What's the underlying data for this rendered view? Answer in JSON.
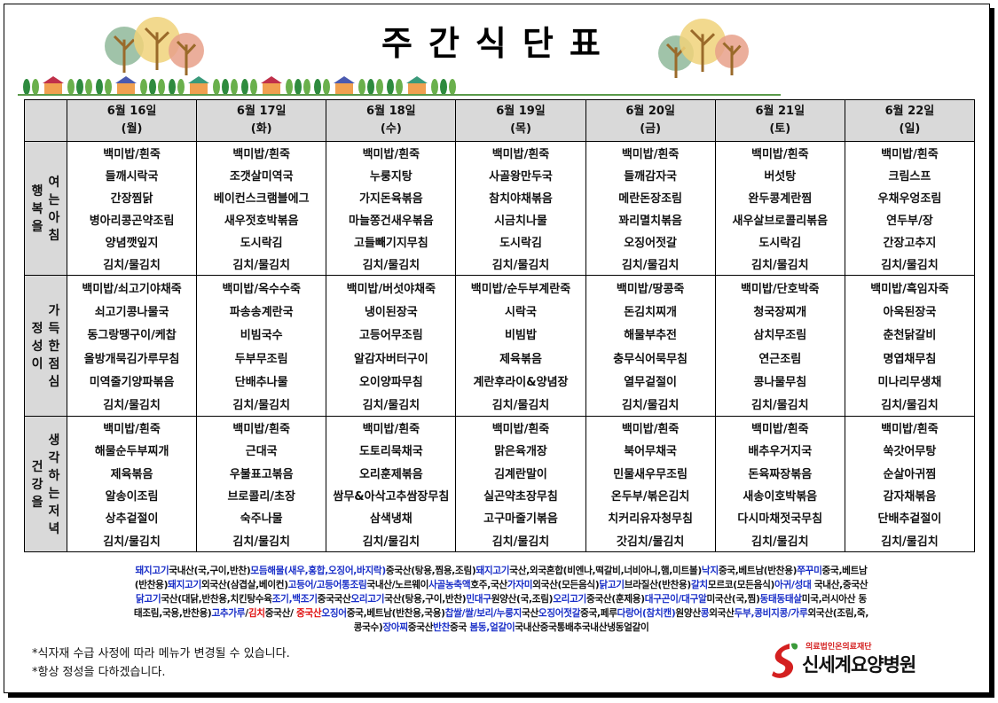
{
  "title": "주간식단표",
  "days": [
    {
      "date": "6월 16일",
      "weekday": "(월)"
    },
    {
      "date": "6월 17일",
      "weekday": "(화)"
    },
    {
      "date": "6월 18일",
      "weekday": "(수)"
    },
    {
      "date": "6월 19일",
      "weekday": "(목)"
    },
    {
      "date": "6월 20일",
      "weekday": "(금)"
    },
    {
      "date": "6월 21일",
      "weekday": "(토)"
    },
    {
      "date": "6월 22일",
      "weekday": "(일)"
    }
  ],
  "meals": [
    {
      "label_left": [
        "행",
        "복",
        "을"
      ],
      "label_right": [
        "여",
        "는",
        "아",
        "침"
      ],
      "menus": [
        [
          "백미밥/흰죽",
          "들깨시락국",
          "간장찜닭",
          "병아리콩곤약조림",
          "양념깻잎지",
          "김치/물김치"
        ],
        [
          "백미밥/흰죽",
          "조갯살미역국",
          "베이컨스크램블에그",
          "새우젓호박볶음",
          "도시락김",
          "김치/물김치"
        ],
        [
          "백미밥/흰죽",
          "누룽지탕",
          "가지돈육볶음",
          "마늘쫑건새우볶음",
          "고들빼기지무침",
          "김치/물김치"
        ],
        [
          "백미밥/흰죽",
          "사골왕만두국",
          "참치야채볶음",
          "시금치나물",
          "도시락김",
          "김치/물김치"
        ],
        [
          "백미밥/흰죽",
          "들깨감자국",
          "메란돈장조림",
          "꽈리멸치볶음",
          "오징어젓갈",
          "김치/물김치"
        ],
        [
          "백미밥/흰죽",
          "버섯탕",
          "완두콩계란찜",
          "새우살브로콜리볶음",
          "도시락김",
          "김치/물김치"
        ],
        [
          "백미밥/흰죽",
          "크림스프",
          "우채우엉조림",
          "연두부/장",
          "간장고추지",
          "김치/물김치"
        ]
      ]
    },
    {
      "label_left": [
        "정",
        "성",
        "이"
      ],
      "label_right": [
        "가",
        "득",
        "한",
        "점",
        "심"
      ],
      "menus": [
        [
          "백미밥/쇠고기야채죽",
          "쇠고기콩나물국",
          "동그랑땡구이/케찹",
          "올방개묵김가루무침",
          "미역줄기양파볶음",
          "김치/물김치"
        ],
        [
          "백미밥/옥수수죽",
          "파송송계란국",
          "비빔국수",
          "두부무조림",
          "단배추나물",
          "김치/물김치"
        ],
        [
          "백미밥/버섯야채죽",
          "냉이된장국",
          "고등어무조림",
          "알감자버터구이",
          "오이양파무침",
          "김치/물김치"
        ],
        [
          "백미밥/순두부계란죽",
          "시락국",
          "비빔밥",
          "제육볶음",
          "계란후라이&양념장",
          "김치/물김치"
        ],
        [
          "백미밥/땅콩죽",
          "돈김치찌개",
          "해물부추전",
          "충무식어묵무침",
          "열무겉절이",
          "김치/물김치"
        ],
        [
          "백미밥/단호박죽",
          "청국장찌개",
          "삼치무조림",
          "연근조림",
          "콩나물무침",
          "김치/물김치"
        ],
        [
          "백미밥/흑임자죽",
          "아욱된장국",
          "춘천닭갈비",
          "명엽채무침",
          "미나리무생채",
          "김치/물김치"
        ]
      ]
    },
    {
      "label_left": [
        "건",
        "강",
        "을"
      ],
      "label_right": [
        "생",
        "각",
        "하",
        "는",
        "저",
        "녁"
      ],
      "menus": [
        [
          "백미밥/흰죽",
          "해물순두부찌개",
          "제육볶음",
          "알송이조림",
          "상추겉절이",
          "김치/물김치"
        ],
        [
          "백미밥/흰죽",
          "근대국",
          "우불표고볶음",
          "브로콜리/초장",
          "숙주나물",
          "김치/물김치"
        ],
        [
          "백미밥/흰죽",
          "도토리묵채국",
          "오리훈제볶음",
          "쌈무&아삭고추쌈장무침",
          "삼색냉채",
          "김치/물김치"
        ],
        [
          "백미밥/흰죽",
          "맑은육개장",
          "김계란말이",
          "실곤약초장무침",
          "고구마줄기볶음",
          "김치/물김치"
        ],
        [
          "백미밥/흰죽",
          "북어무채국",
          "민물새우무조림",
          "온두부/볶은김치",
          "치커리유자청무침",
          "갓김치/물김치"
        ],
        [
          "백미밥/흰죽",
          "배추우거지국",
          "돈육짜장볶음",
          "새송이호박볶음",
          "다시마채젓국무침",
          "김치/물김치"
        ],
        [
          "백미밥/흰죽",
          "쑥갓어무탕",
          "순살아귀찜",
          "감자채볶음",
          "단배추겉절이",
          "김치/물김치"
        ]
      ]
    }
  ],
  "origin_colors": {
    "b": "#1a2fc8",
    "k": "#111111",
    "r": "#e01010"
  },
  "origins": [
    [
      [
        "b",
        "돼지고기"
      ],
      [
        "k",
        "국내산(국,구이,반찬)"
      ],
      [
        "b",
        "모듬해물(새우,홍합,오징어,바지락)"
      ],
      [
        "k",
        "중국산(탕용,찜용,조림)"
      ],
      [
        "b",
        "돼지고기"
      ],
      [
        "k",
        "국산,외국혼합(비엔나,떡갈비,너비아니,햄,미트볼)"
      ],
      [
        "b",
        "낙지"
      ],
      [
        "k",
        "중국,베트남(반찬용)"
      ],
      [
        "b",
        "쭈꾸미"
      ],
      [
        "k",
        "중국,베트남"
      ]
    ],
    [
      [
        "k",
        "(반찬용)"
      ],
      [
        "b",
        "돼지고기"
      ],
      [
        "k",
        "외국산(삼겹살,베이컨)"
      ],
      [
        "b",
        "고등어/고등어통조림"
      ],
      [
        "k",
        "국내산/노르웨이"
      ],
      [
        "b",
        "사골농축액"
      ],
      [
        "k",
        "호주,국산"
      ],
      [
        "b",
        "가자미"
      ],
      [
        "k",
        "외국산(모든음식)"
      ],
      [
        "b",
        "닭고기"
      ],
      [
        "k",
        "브라질산(반찬용)"
      ],
      [
        "b",
        "갈치"
      ],
      [
        "k",
        "모르코(모든음식)"
      ],
      [
        "b",
        "아귀/성대"
      ],
      [
        "k",
        " 국내산,중국산"
      ]
    ],
    [
      [
        "b",
        "닭고기"
      ],
      [
        "k",
        "국산(대닭,반찬용,치킨탕수육"
      ],
      [
        "b",
        "조기,백조기"
      ],
      [
        "k",
        "중국국산"
      ],
      [
        "b",
        "오리고기"
      ],
      [
        "k",
        "국산(탕용,구이,반찬)"
      ],
      [
        "b",
        "민대구"
      ],
      [
        "k",
        "원양산(국,조림)"
      ],
      [
        "b",
        "오리고기"
      ],
      [
        "k",
        "중국산(훈제용)"
      ],
      [
        "b",
        "대구곤이/대구알"
      ],
      [
        "k",
        "미국산(국,찜)"
      ],
      [
        "b",
        "동태동태살"
      ],
      [
        "k",
        "미국,러시아산 동"
      ]
    ],
    [
      [
        "k",
        "태조림,국용,반찬용)"
      ],
      [
        "b",
        "고추가루"
      ],
      [
        "k",
        "/"
      ],
      [
        "r",
        "김치"
      ],
      [
        "k",
        "중국산/ "
      ],
      [
        "r",
        "중국산"
      ],
      [
        "b",
        "오징어"
      ],
      [
        "k",
        "중국,베트남(반찬용,국용)"
      ],
      [
        "b",
        "찹쌀/쌀/보리/누룽지"
      ],
      [
        "k",
        "국산"
      ],
      [
        "b",
        "오징어젓갈"
      ],
      [
        "k",
        "중국,페루"
      ],
      [
        "b",
        "다랑어(참치캔)"
      ],
      [
        "k",
        "원양산"
      ],
      [
        "b",
        "콩"
      ],
      [
        "k",
        "외국산"
      ],
      [
        "b",
        "두부,콩비지콩/가루"
      ],
      [
        "k",
        "외국산(조림,죽,"
      ]
    ],
    [
      [
        "k",
        "콩국수)"
      ],
      [
        "b",
        "장아찌"
      ],
      [
        "k",
        "중국산"
      ],
      [
        "b",
        "반찬"
      ],
      [
        "k",
        "중국 "
      ],
      [
        "b",
        "봄동,얼갈이"
      ],
      [
        "k",
        "국내산중국통배추국내산냉동얼갈이"
      ]
    ]
  ],
  "notes": [
    "*식자재 수급 사정에 따라 메뉴가 변경될 수 있습니다.",
    "*항상 정성을 다하겠습니다."
  ],
  "logo": {
    "subtitle": "의료법인온의료재단",
    "name": "신세계요양병원",
    "color": "#d42020"
  }
}
